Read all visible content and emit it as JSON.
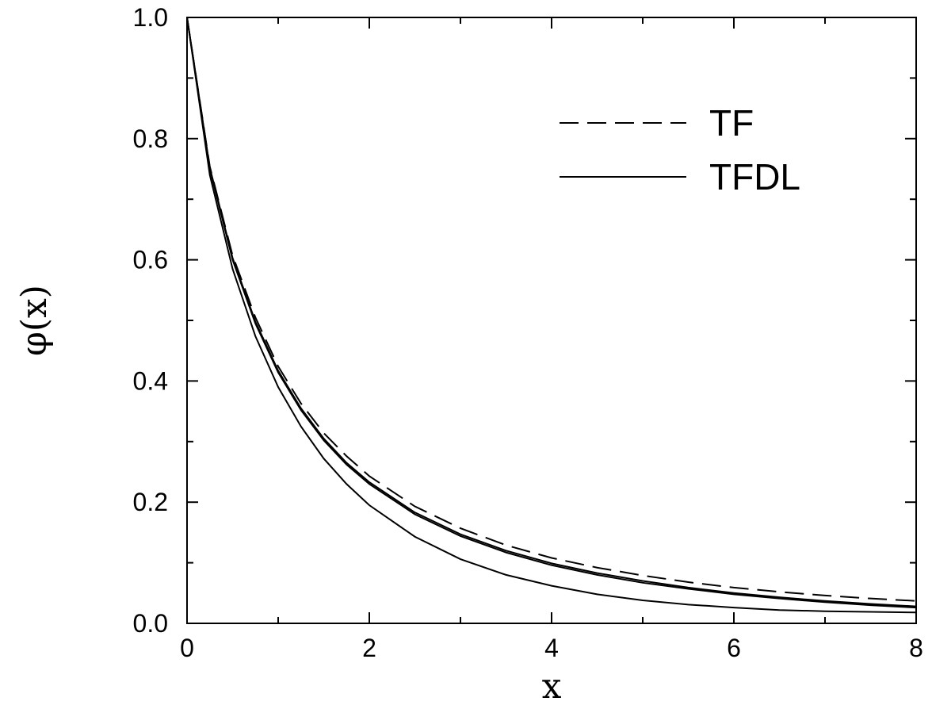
{
  "chart_data": {
    "type": "line",
    "title": "",
    "xlabel": "x",
    "ylabel": "φ(x)",
    "xlim": [
      0,
      8
    ],
    "ylim": [
      0,
      1.0
    ],
    "x_ticks": [
      0,
      2,
      4,
      6,
      8
    ],
    "x_tick_labels": [
      "0",
      "2",
      "4",
      "6",
      "8"
    ],
    "y_ticks": [
      0.0,
      0.2,
      0.4,
      0.6,
      0.8,
      1.0
    ],
    "y_tick_labels": [
      "0.0",
      "0.2",
      "0.4",
      "0.6",
      "0.8",
      "1.0"
    ],
    "grid": false,
    "legend_position": "top-right",
    "legend": [
      {
        "label": "TF",
        "style": "dashed"
      },
      {
        "label": "TFDL",
        "style": "solid"
      }
    ],
    "series": [
      {
        "style": "dashed",
        "x": [
          0,
          0.25,
          0.5,
          0.75,
          1.0,
          1.25,
          1.5,
          1.75,
          2.0,
          2.5,
          3.0,
          3.5,
          4.0,
          4.5,
          5.0,
          5.5,
          6.0,
          6.5,
          7.0,
          7.5,
          8.0
        ],
        "y": [
          1.0,
          0.754,
          0.607,
          0.505,
          0.424,
          0.363,
          0.314,
          0.276,
          0.243,
          0.193,
          0.157,
          0.129,
          0.108,
          0.092,
          0.079,
          0.068,
          0.059,
          0.052,
          0.046,
          0.041,
          0.037
        ]
      },
      {
        "style": "solid",
        "x": [
          0,
          0.25,
          0.5,
          0.75,
          1.0,
          1.25,
          1.5,
          1.75,
          2.0,
          2.5,
          3.0,
          3.5,
          4.0,
          4.5,
          5.0,
          5.5,
          6.0,
          6.5,
          7.0,
          7.5,
          8.0
        ],
        "y": [
          1.0,
          0.75,
          0.6,
          0.495,
          0.414,
          0.352,
          0.302,
          0.262,
          0.23,
          0.18,
          0.144,
          0.117,
          0.096,
          0.08,
          0.067,
          0.057,
          0.048,
          0.041,
          0.035,
          0.03,
          0.026
        ]
      },
      {
        "style": "solid",
        "x": [
          0,
          0.25,
          0.5,
          0.75,
          1.0,
          1.25,
          1.5,
          1.75,
          2.0,
          2.5,
          3.0,
          3.5,
          4.0,
          4.5,
          5.0,
          5.5,
          6.0,
          6.5,
          7.0,
          7.5,
          8.0
        ],
        "y": [
          1.0,
          0.752,
          0.603,
          0.498,
          0.417,
          0.355,
          0.305,
          0.265,
          0.233,
          0.183,
          0.147,
          0.12,
          0.099,
          0.083,
          0.07,
          0.059,
          0.05,
          0.043,
          0.037,
          0.032,
          0.028
        ]
      },
      {
        "style": "solid",
        "x": [
          0,
          0.25,
          0.5,
          0.75,
          1.0,
          1.25,
          1.5,
          1.75,
          2.0,
          2.5,
          3.0,
          3.5,
          4.0,
          4.5,
          5.0,
          5.5,
          6.0,
          6.5,
          7.0,
          7.5,
          8.0
        ],
        "y": [
          1.0,
          0.74,
          0.585,
          0.474,
          0.39,
          0.325,
          0.272,
          0.23,
          0.195,
          0.143,
          0.106,
          0.08,
          0.062,
          0.048,
          0.038,
          0.031,
          0.026,
          0.022,
          0.02,
          0.019,
          0.018
        ]
      }
    ]
  }
}
